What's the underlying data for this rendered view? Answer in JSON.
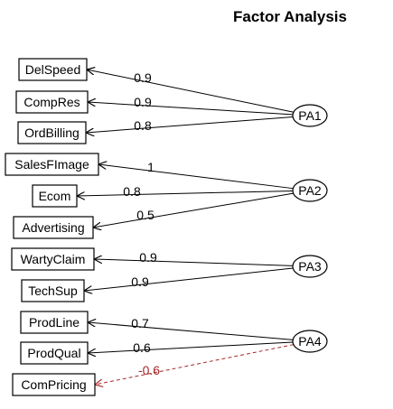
{
  "diagram": {
    "title": "Factor Analysis",
    "variables": [
      "DelSpeed",
      "CompRes",
      "OrdBilling",
      "SalesFImage",
      "Ecom",
      "Advertising",
      "WartyClaim",
      "TechSup",
      "ProdLine",
      "ProdQual",
      "ComPricing"
    ],
    "factors": [
      "PA1",
      "PA2",
      "PA3",
      "PA4"
    ],
    "loadings": [
      {
        "variable": "DelSpeed",
        "factor": "PA1",
        "label": "0.9",
        "sign": "positive"
      },
      {
        "variable": "CompRes",
        "factor": "PA1",
        "label": "0.9",
        "sign": "positive"
      },
      {
        "variable": "OrdBilling",
        "factor": "PA1",
        "label": "0.8",
        "sign": "positive"
      },
      {
        "variable": "SalesFImage",
        "factor": "PA2",
        "label": "1",
        "sign": "positive"
      },
      {
        "variable": "Ecom",
        "factor": "PA2",
        "label": "0.8",
        "sign": "positive"
      },
      {
        "variable": "Advertising",
        "factor": "PA2",
        "label": "0.5",
        "sign": "positive"
      },
      {
        "variable": "WartyClaim",
        "factor": "PA3",
        "label": "0.9",
        "sign": "positive"
      },
      {
        "variable": "TechSup",
        "factor": "PA3",
        "label": "0.9",
        "sign": "positive"
      },
      {
        "variable": "ProdLine",
        "factor": "PA4",
        "label": "0.7",
        "sign": "positive"
      },
      {
        "variable": "ProdQual",
        "factor": "PA4",
        "label": "0.6",
        "sign": "positive"
      },
      {
        "variable": "ComPricing",
        "factor": "PA4",
        "label": "-0.6",
        "sign": "negative"
      }
    ],
    "colors": {
      "positive": "#000000",
      "negative": "#a52a2a"
    }
  }
}
